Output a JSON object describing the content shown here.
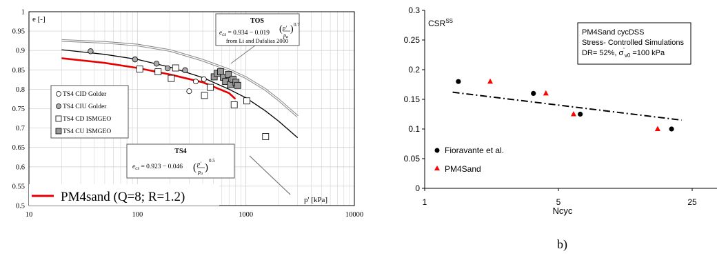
{
  "chart_data": [
    {
      "type": "scatter",
      "panel": "a",
      "ylabel": "e [-]",
      "xlabel": "p' [kPa]",
      "x_scale": "log",
      "xlim": [
        10,
        10000
      ],
      "ylim": [
        0.5,
        1.0
      ],
      "x_ticks": [
        10,
        100,
        1000,
        10000
      ],
      "x_tick_labels": [
        "10",
        "100",
        "1000",
        "10000"
      ],
      "y_ticks": [
        0.5,
        0.55,
        0.6,
        0.65,
        0.7,
        0.75,
        0.8,
        0.85,
        0.9,
        0.95,
        1.0
      ],
      "y_tick_labels": [
        "0.5",
        "0.55",
        "0.6",
        "0.65",
        "0.7",
        "0.75",
        "0.8",
        "0.85",
        "0.9",
        "0.95",
        "1"
      ],
      "grid": true,
      "legend": {
        "location": "left",
        "entries": [
          "TS4 CID Golder",
          "TS4 CIU Golder",
          "TS4 CD ISMGEO",
          "TS4 CU ISMGEO"
        ]
      },
      "line_legend_label": "PM4sand (Q=8; R=1.2)",
      "annotations": {
        "tos_title": "TOS",
        "tos_eq": "e",
        "tos_eq_sub": "cs",
        "tos_eq_body": " = 0.934 − 0.019 ",
        "tos_exp": "0.7",
        "tos_source": "from Li and Dafalias 2000",
        "ts4_title": "TS4",
        "ts4_eq": "e",
        "ts4_eq_sub": "cs",
        "ts4_eq_body": " = 0.923 − 0.046 ",
        "ts4_exp": "0.5",
        "frac_num": "p'",
        "frac_den": "p",
        "frac_den_sub": "a"
      },
      "series": [
        {
          "name": "TS4 CID Golder",
          "marker": "circle-open",
          "points": [
            [
              300,
              0.795
            ],
            [
              345,
              0.82
            ],
            [
              410,
              0.826
            ]
          ]
        },
        {
          "name": "TS4 CIU Golder",
          "marker": "circle-gray",
          "points": [
            [
              37,
              0.898
            ],
            [
              95,
              0.877
            ],
            [
              150,
              0.866
            ],
            [
              190,
              0.854
            ],
            [
              275,
              0.849
            ]
          ]
        },
        {
          "name": "TS4 CD ISMGEO",
          "marker": "square-open",
          "points": [
            [
              105,
              0.852
            ],
            [
              155,
              0.845
            ],
            [
              205,
              0.828
            ],
            [
              225,
              0.855
            ],
            [
              415,
              0.784
            ],
            [
              470,
              0.805
            ],
            [
              780,
              0.76
            ],
            [
              1020,
              0.77
            ],
            [
              1520,
              0.678
            ]
          ]
        },
        {
          "name": "TS4 CU ISMGEO",
          "marker": "square-gray",
          "points": [
            [
              510,
              0.832
            ],
            [
              545,
              0.841
            ],
            [
              585,
              0.845
            ],
            [
              620,
              0.831
            ],
            [
              650,
              0.82
            ],
            [
              690,
              0.838
            ],
            [
              720,
              0.812
            ],
            [
              760,
              0.826
            ],
            [
              810,
              0.818
            ],
            [
              840,
              0.81
            ]
          ]
        },
        {
          "name": "TOS",
          "style": "double-gray-line",
          "points": [
            [
              20,
              0.926
            ],
            [
              50,
              0.921
            ],
            [
              100,
              0.914
            ],
            [
              200,
              0.9
            ],
            [
              400,
              0.875
            ],
            [
              700,
              0.85
            ],
            [
              1000,
              0.83
            ],
            [
              1500,
              0.8
            ],
            [
              2000,
              0.773
            ],
            [
              3000,
              0.73
            ]
          ]
        },
        {
          "name": "TS4",
          "style": "black-line",
          "points": [
            [
              20,
              0.902
            ],
            [
              50,
              0.89
            ],
            [
              100,
              0.877
            ],
            [
              200,
              0.857
            ],
            [
              400,
              0.83
            ],
            [
              700,
              0.8
            ],
            [
              1000,
              0.778
            ],
            [
              1500,
              0.745
            ],
            [
              2000,
              0.718
            ],
            [
              3000,
              0.675
            ]
          ]
        },
        {
          "name": "PM4sand (Q=8; R=1.2)",
          "style": "red-line",
          "points": [
            [
              20,
              0.88
            ],
            [
              50,
              0.868
            ],
            [
              100,
              0.855
            ],
            [
              200,
              0.838
            ],
            [
              400,
              0.818
            ],
            [
              700,
              0.79
            ],
            [
              800,
              0.775
            ]
          ]
        }
      ]
    },
    {
      "type": "scatter",
      "panel": "b",
      "panel_label": "b)",
      "ylabel": "CSR",
      "ylabel_sup": "SS",
      "xlabel": "Ncyc",
      "x_scale": "log",
      "xlim": [
        1,
        30
      ],
      "ylim": [
        0,
        0.3
      ],
      "x_ticks": [
        1,
        5,
        25
      ],
      "x_tick_labels": [
        "1",
        "5",
        "25"
      ],
      "y_ticks": [
        0,
        0.05,
        0.1,
        0.15,
        0.2,
        0.25,
        0.3
      ],
      "y_tick_labels": [
        "0",
        "0.05",
        "0.1",
        "0.15",
        "0.2",
        "0.25",
        "0.3"
      ],
      "grid": false,
      "info_box": {
        "line1": "PM4Sand cycDSS",
        "line2": "Stress- Controlled  Simulations",
        "line3_prefix": "DR= 52%, σ",
        "line3_sup": "'",
        "line3_sub": "v0",
        "line3_suffix": " =100 kPa"
      },
      "legend": {
        "location": "bottom-left",
        "entries": [
          "Fioravante et al.",
          "PM4Sand"
        ]
      },
      "series": [
        {
          "name": "Fioravante et al.",
          "color": "#000000",
          "marker": "circle",
          "points": [
            [
              1.5,
              0.18
            ],
            [
              3.7,
              0.16
            ],
            [
              6.5,
              0.125
            ],
            [
              19.5,
              0.1
            ]
          ]
        },
        {
          "name": "PM4Sand",
          "color": "#ff0000",
          "marker": "triangle",
          "points": [
            [
              2.2,
              0.18
            ],
            [
              4.3,
              0.16
            ],
            [
              6.0,
              0.125
            ],
            [
              16.5,
              0.1
            ]
          ]
        }
      ],
      "trendline": {
        "style": "dash-dot",
        "points": [
          [
            1.4,
            0.162
          ],
          [
            22,
            0.115
          ]
        ]
      }
    }
  ]
}
